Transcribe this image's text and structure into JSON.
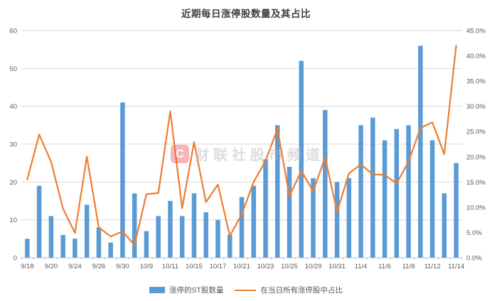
{
  "title": "近期每日涨停股数量及其占比",
  "watermark": {
    "logo_glyph": "C",
    "text": "财联社股市频道"
  },
  "colors": {
    "bar": "#5B9BD5",
    "line": "#ED7D31",
    "grid": "#D9D9D9",
    "axis_line": "#BFBFBF",
    "axis_text": "#595959",
    "title_text": "#3F3F3F"
  },
  "legend": [
    {
      "label": "涨停的ST股数量",
      "type": "bar",
      "color": "#5B9BD5"
    },
    {
      "label": "在当日所有涨停股中占比",
      "type": "line",
      "color": "#ED7D31"
    }
  ],
  "chart_data": {
    "type": "combo",
    "categories": [
      "9/18",
      "9/19",
      "9/20",
      "9/23",
      "9/24",
      "9/25",
      "9/26",
      "9/27",
      "9/30",
      "10/8",
      "10/9",
      "10/10",
      "10/11",
      "10/14",
      "10/15",
      "10/16",
      "10/17",
      "10/18",
      "10/21",
      "10/22",
      "10/23",
      "10/24",
      "10/25",
      "10/28",
      "10/29",
      "10/30",
      "10/31",
      "11/1",
      "11/4",
      "11/5",
      "11/6",
      "11/7",
      "11/8",
      "11/11",
      "11/12",
      "11/13",
      "11/14"
    ],
    "x_tick_labels": [
      "9/18",
      "9/20",
      "9/24",
      "9/26",
      "9/30",
      "10/9",
      "10/11",
      "10/15",
      "10/17",
      "10/21",
      "10/23",
      "10/25",
      "10/29",
      "10/31",
      "11/4",
      "11/6",
      "11/8",
      "11/12",
      "11/14"
    ],
    "x_label_every": 2,
    "series": [
      {
        "name": "涨停的ST股数量",
        "type": "bar",
        "yaxis": "left",
        "color": "#5B9BD5",
        "values": [
          5,
          19,
          11,
          6,
          5,
          14,
          8,
          4,
          41,
          17,
          7,
          11,
          15,
          11,
          17,
          12,
          10,
          6,
          16,
          19,
          26,
          35,
          24,
          52,
          21,
          39,
          20,
          21,
          35,
          37,
          31,
          34,
          35,
          56,
          31,
          17,
          25
        ]
      },
      {
        "name": "在当日所有涨停股中占比",
        "type": "line",
        "yaxis": "right",
        "color": "#ED7D31",
        "values_percent": [
          15.5,
          24.4,
          19.0,
          9.7,
          4.9,
          20.0,
          6.0,
          4.2,
          5.2,
          2.5,
          12.6,
          12.8,
          29.0,
          9.8,
          22.9,
          11.0,
          14.5,
          4.3,
          8.6,
          15.0,
          19.2,
          25.5,
          12.2,
          17.2,
          13.2,
          19.9,
          9.1,
          16.7,
          18.5,
          16.5,
          16.4,
          14.7,
          19.0,
          25.7,
          26.8,
          20.5,
          42.0
        ]
      }
    ],
    "left_axis": {
      "min": 0,
      "max": 60,
      "step": 10,
      "ticks": [
        "0",
        "10",
        "20",
        "30",
        "40",
        "50",
        "60"
      ]
    },
    "right_axis": {
      "min": 0,
      "max": 45,
      "step": 5,
      "ticks": [
        "0.0%",
        "5.0%",
        "10.0%",
        "15.0%",
        "20.0%",
        "25.0%",
        "30.0%",
        "35.0%",
        "40.0%",
        "45.0%"
      ]
    },
    "grid": true,
    "legend_position": "bottom",
    "title": "近期每日涨停股数量及其占比"
  }
}
